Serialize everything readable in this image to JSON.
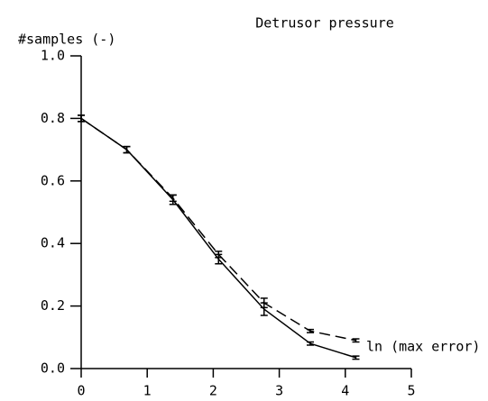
{
  "chart_data": {
    "type": "line",
    "title": "Detrusor pressure",
    "ylabel": "#samples (-)",
    "xlabel": "ln (max error)",
    "x": [
      0,
      0.69,
      1.39,
      2.08,
      2.77,
      3.47,
      4.16
    ],
    "series": [
      {
        "color": "#000000",
        "dashed": false,
        "values": [
          0.8,
          0.7,
          0.54,
          0.35,
          0.19,
          0.08,
          0.035
        ],
        "errors": [
          0.01,
          0.01,
          0.015,
          0.015,
          0.02,
          0.005,
          0.005
        ]
      },
      {
        "color": "#000000",
        "dashed": true,
        "values": [
          0.8,
          0.7,
          0.545,
          0.365,
          0.21,
          0.12,
          0.09
        ],
        "errors": [
          0.01,
          0.01,
          0.01,
          0.01,
          0.015,
          0.005,
          0.005
        ]
      }
    ],
    "xlim": [
      0,
      5
    ],
    "xticks": [
      0,
      1,
      2,
      3,
      4,
      5
    ],
    "ylim": [
      0,
      1
    ],
    "yticks": [
      {
        "value": 0,
        "label": "0.0"
      },
      0.2,
      0.4,
      0.6,
      0.8,
      {
        "value": 1,
        "label": "1.0"
      }
    ],
    "grid": false
  }
}
